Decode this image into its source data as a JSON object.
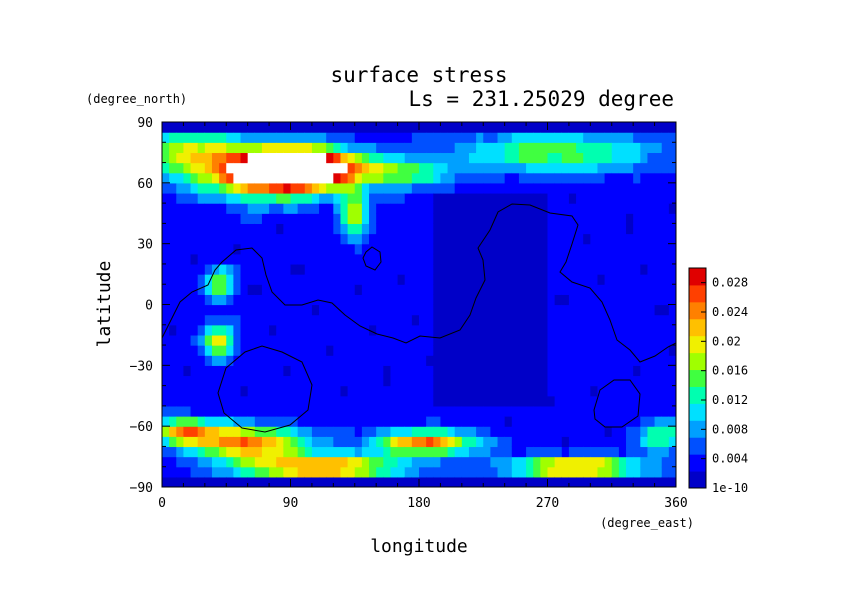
{
  "chart_data": {
    "type": "heatmap",
    "title": "surface stress",
    "subtitle": "Ls = 231.25029 degree",
    "xlabel": "longitude",
    "ylabel": "latitude",
    "x_unit": "(degree_east)",
    "y_unit": "(degree_north)",
    "xlim": [
      0,
      360
    ],
    "ylim": [
      -90,
      90
    ],
    "x_ticks": [
      0,
      90,
      180,
      270,
      360
    ],
    "y_ticks": [
      90,
      60,
      30,
      0,
      -30,
      -60,
      -90
    ],
    "x_tick_labels": [
      "0",
      "90",
      "180",
      "270",
      "360"
    ],
    "y_tick_labels": [
      "90",
      "60",
      "30",
      "0",
      "−30",
      "−60",
      "−90"
    ],
    "colorbar": {
      "min": 1e-10,
      "max": 0.03,
      "tick_values": [
        1e-10,
        0.004,
        0.008,
        0.012,
        0.016,
        0.02,
        0.024,
        0.028
      ],
      "tick_labels": [
        "1e-10",
        "0.004",
        "0.008",
        "0.012",
        "0.016",
        "0.02",
        "0.024",
        "0.028"
      ],
      "colors": [
        "#0000c8",
        "#0000ff",
        "#0050ff",
        "#00a0ff",
        "#00e0ff",
        "#00ffb0",
        "#40ff40",
        "#a0ff00",
        "#f0f000",
        "#ffc000",
        "#ff8000",
        "#ff4000",
        "#e00000",
        "#ffffff"
      ]
    },
    "features": [
      {
        "lon": 100,
        "lat": 68,
        "value": 0.032,
        "rlon": 40,
        "rlat": 9
      },
      {
        "lon": 75,
        "lat": 64,
        "value": 0.024,
        "rlon": 45,
        "rlat": 12
      },
      {
        "lon": 20,
        "lat": 75,
        "value": 0.014,
        "rlon": 40,
        "rlat": 12
      },
      {
        "lon": 135,
        "lat": 45,
        "value": 0.014,
        "rlon": 10,
        "rlat": 12
      },
      {
        "lon": 275,
        "lat": 75,
        "value": 0.012,
        "rlon": 70,
        "rlat": 10
      },
      {
        "lon": 170,
        "lat": 65,
        "value": 0.012,
        "rlon": 30,
        "rlat": 7
      },
      {
        "lon": 40,
        "lat": -18,
        "value": 0.018,
        "rlon": 10,
        "rlat": 8
      },
      {
        "lon": 40,
        "lat": 10,
        "value": 0.014,
        "rlon": 10,
        "rlat": 8
      },
      {
        "lon": 60,
        "lat": -68,
        "value": 0.022,
        "rlon": 40,
        "rlat": 8
      },
      {
        "lon": 15,
        "lat": -62,
        "value": 0.018,
        "rlon": 25,
        "rlat": 6
      },
      {
        "lon": 110,
        "lat": -80,
        "value": 0.022,
        "rlon": 55,
        "rlat": 6
      },
      {
        "lon": 185,
        "lat": -68,
        "value": 0.022,
        "rlon": 35,
        "rlat": 6
      },
      {
        "lon": 290,
        "lat": -80,
        "value": 0.022,
        "rlon": 45,
        "rlat": 5
      },
      {
        "lon": 350,
        "lat": -65,
        "value": 0.012,
        "rlon": 15,
        "rlat": 8
      }
    ]
  }
}
